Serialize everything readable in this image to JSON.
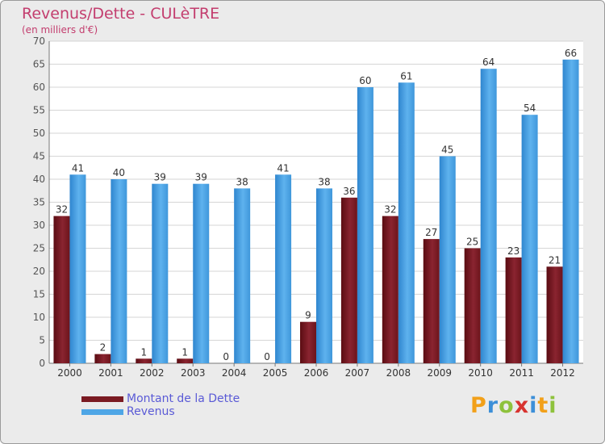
{
  "chart_data": {
    "type": "bar",
    "title": "Revenus/Dette - CULèTRE",
    "subtitle": "(en milliers d'€)",
    "categories": [
      "2000",
      "2001",
      "2002",
      "2003",
      "2004",
      "2005",
      "2006",
      "2007",
      "2008",
      "2009",
      "2010",
      "2011",
      "2012"
    ],
    "series": [
      {
        "name": "Montant de la Dette",
        "color": "#7a1a22",
        "values": [
          32,
          2,
          1,
          1,
          0,
          0,
          9,
          36,
          32,
          27,
          25,
          23,
          21
        ]
      },
      {
        "name": "Revenus",
        "color": "#4ea6e6",
        "values": [
          41,
          40,
          39,
          39,
          38,
          41,
          38,
          60,
          61,
          45,
          64,
          54,
          66
        ]
      }
    ],
    "ylim": [
      0,
      70
    ],
    "yticks": [
      0,
      5,
      10,
      15,
      20,
      25,
      30,
      35,
      40,
      45,
      50,
      55,
      60,
      65,
      70
    ],
    "grid": true,
    "legend": "bottom-left"
  },
  "brand": {
    "letters": [
      "P",
      "r",
      "o",
      "x",
      "i",
      "t",
      "i"
    ],
    "colors": [
      "#f2a019",
      "#3c8fd8",
      "#8ec23c",
      "#d8332f",
      "#3c8fd8",
      "#f2a019",
      "#8ec23c"
    ]
  }
}
